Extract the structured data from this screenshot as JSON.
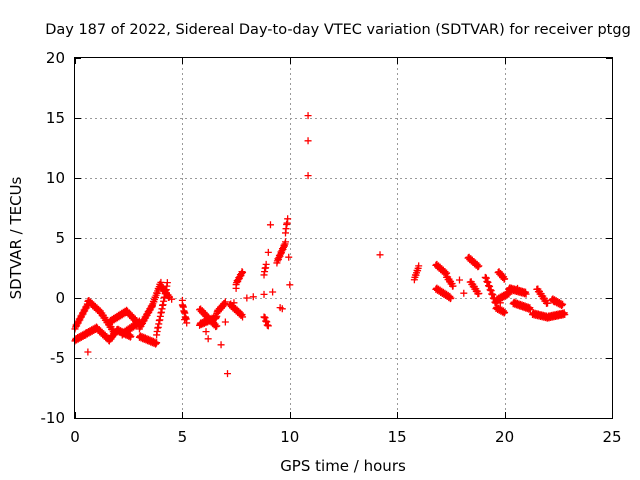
{
  "chart_data": {
    "type": "scatter",
    "title": "Day 187 of 2022, Sidereal Day-to-day VTEC variation (SDTVAR) for receiver ptgg",
    "xlabel": "GPS time / hours",
    "ylabel": "SDTVAR / TECUs",
    "xlim": [
      0,
      25
    ],
    "ylim": [
      -10,
      20
    ],
    "xticks": [
      0,
      5,
      10,
      15,
      20,
      25
    ],
    "yticks": [
      -10,
      -5,
      0,
      5,
      10,
      15,
      20
    ],
    "grid": true,
    "marker": "+",
    "color": "#ff0000",
    "series": [
      {
        "name": "SDTVAR",
        "segments": [
          {
            "x0": 0.0,
            "x1": 0.6,
            "y0": -2.5,
            "y1": -0.5
          },
          {
            "x0": 0.6,
            "x1": 1.2,
            "y0": -0.2,
            "y1": -1.2
          },
          {
            "x0": 1.2,
            "x1": 1.8,
            "y0": -1.2,
            "y1": -2.8
          },
          {
            "x0": 0.0,
            "x1": 0.5,
            "y0": -3.5,
            "y1": -3.0
          },
          {
            "x0": 0.5,
            "x1": 1.0,
            "y0": -3.0,
            "y1": -2.5
          },
          {
            "x0": 1.0,
            "x1": 1.6,
            "y0": -2.5,
            "y1": -3.5
          },
          {
            "x0": 1.6,
            "x1": 2.0,
            "y0": -3.5,
            "y1": -2.6
          },
          {
            "x0": 1.6,
            "x1": 2.4,
            "y0": -2.0,
            "y1": -1.1
          },
          {
            "x0": 2.4,
            "x1": 3.0,
            "y0": -1.1,
            "y1": -2.2
          },
          {
            "x0": 2.2,
            "x1": 3.0,
            "y0": -3.0,
            "y1": -2.0
          },
          {
            "x0": 2.0,
            "x1": 2.6,
            "y0": -2.7,
            "y1": -3.2
          },
          {
            "x0": 3.0,
            "x1": 3.6,
            "y0": -2.5,
            "y1": -0.6
          },
          {
            "x0": 3.6,
            "x1": 4.0,
            "y0": -0.6,
            "y1": 1.3
          },
          {
            "x0": 3.0,
            "x1": 3.8,
            "y0": -3.2,
            "y1": -3.8
          },
          {
            "x0": 3.8,
            "x1": 4.3,
            "y0": -3.0,
            "y1": 1.2
          },
          {
            "x0": 4.0,
            "x1": 4.4,
            "y0": 1.0,
            "y1": 0.0
          },
          {
            "x0": 5.0,
            "x1": 5.2,
            "y0": -0.5,
            "y1": -2.0
          },
          {
            "x0": 5.8,
            "x1": 6.6,
            "y0": -0.9,
            "y1": -2.4
          },
          {
            "x0": 5.8,
            "x1": 6.6,
            "y0": -2.2,
            "y1": -1.6
          },
          {
            "x0": 6.6,
            "x1": 7.0,
            "y0": -1.2,
            "y1": -0.4
          },
          {
            "x0": 7.2,
            "x1": 7.8,
            "y0": -0.5,
            "y1": -1.5
          },
          {
            "x0": 7.5,
            "x1": 7.8,
            "y0": 1.2,
            "y1": 2.2
          },
          {
            "x0": 8.8,
            "x1": 8.9,
            "y0": 2.0,
            "y1": 2.8
          },
          {
            "x0": 8.8,
            "x1": 9.0,
            "y0": -1.5,
            "y1": -2.4
          },
          {
            "x0": 9.4,
            "x1": 9.8,
            "y0": 3.0,
            "y1": 4.6
          },
          {
            "x0": 9.8,
            "x1": 9.9,
            "y0": 5.5,
            "y1": 6.6
          },
          {
            "x0": 15.8,
            "x1": 16.0,
            "y0": 1.6,
            "y1": 2.6
          },
          {
            "x0": 16.8,
            "x1": 17.3,
            "y0": 2.8,
            "y1": 2.0
          },
          {
            "x0": 16.8,
            "x1": 17.5,
            "y0": 0.8,
            "y1": 0.0
          },
          {
            "x0": 17.3,
            "x1": 17.6,
            "y0": 1.8,
            "y1": 1.0
          },
          {
            "x0": 18.3,
            "x1": 18.8,
            "y0": 3.4,
            "y1": 2.6
          },
          {
            "x0": 18.4,
            "x1": 18.8,
            "y0": 1.4,
            "y1": 0.3
          },
          {
            "x0": 19.1,
            "x1": 19.6,
            "y0": 1.8,
            "y1": -0.5
          },
          {
            "x0": 19.6,
            "x1": 20.0,
            "y0": -0.8,
            "y1": -1.2
          },
          {
            "x0": 19.7,
            "x1": 20.0,
            "y0": 2.2,
            "y1": 1.6
          },
          {
            "x0": 19.6,
            "x1": 20.2,
            "y0": -0.2,
            "y1": 0.4
          },
          {
            "x0": 20.2,
            "x1": 21.0,
            "y0": 0.8,
            "y1": 0.4
          },
          {
            "x0": 20.4,
            "x1": 21.2,
            "y0": -0.4,
            "y1": -0.9
          },
          {
            "x0": 21.5,
            "x1": 22.0,
            "y0": 0.8,
            "y1": -0.5
          },
          {
            "x0": 21.3,
            "x1": 22.0,
            "y0": -1.3,
            "y1": -1.6
          },
          {
            "x0": 22.0,
            "x1": 22.8,
            "y0": -1.6,
            "y1": -1.3
          },
          {
            "x0": 22.2,
            "x1": 22.7,
            "y0": -0.1,
            "y1": -0.6
          }
        ],
        "points": [
          [
            0.6,
            -4.5
          ],
          [
            7.1,
            -6.3
          ],
          [
            10.85,
            15.2
          ],
          [
            10.85,
            13.1
          ],
          [
            10.85,
            10.2
          ],
          [
            14.2,
            3.6
          ],
          [
            9.1,
            6.1
          ],
          [
            9.0,
            3.8
          ],
          [
            8.8,
            0.3
          ],
          [
            9.2,
            0.5
          ],
          [
            9.55,
            -0.8
          ],
          [
            9.65,
            -0.9
          ],
          [
            10.0,
            1.1
          ],
          [
            9.95,
            3.4
          ],
          [
            7.0,
            -2.0
          ],
          [
            7.4,
            -0.4
          ],
          [
            6.2,
            -3.4
          ],
          [
            6.8,
            -3.9
          ],
          [
            8.0,
            0.0
          ],
          [
            4.3,
            0.2
          ],
          [
            4.5,
            -0.1
          ],
          [
            19.8,
            -0.4
          ],
          [
            18.1,
            0.4
          ],
          [
            17.9,
            1.5
          ],
          [
            20.6,
            0.8
          ],
          [
            22.3,
            -0.3
          ],
          [
            5.1,
            -1.8
          ],
          [
            5.0,
            -0.2
          ],
          [
            7.5,
            0.8
          ],
          [
            7.6,
            -1.1
          ],
          [
            8.3,
            0.1
          ],
          [
            6.1,
            -2.8
          ]
        ]
      }
    ]
  }
}
